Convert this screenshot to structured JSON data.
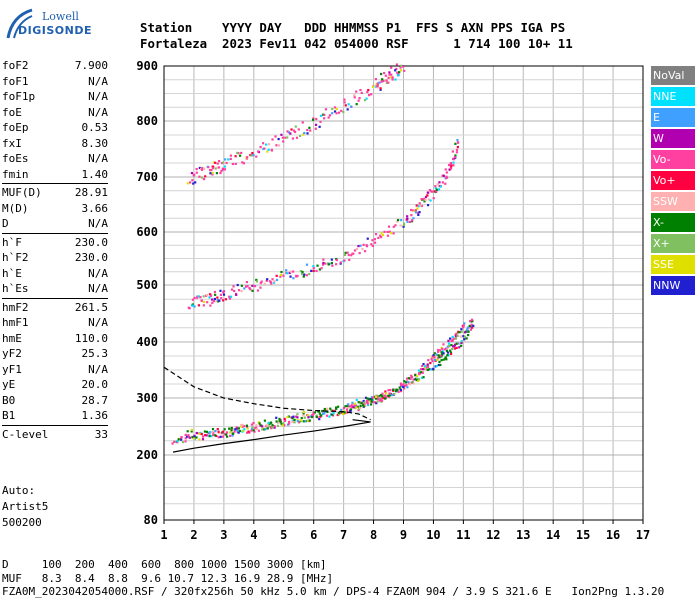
{
  "logo": {
    "line1": "Lowell",
    "line2": "DIGISONDE"
  },
  "header": {
    "line1": "Station    YYYY DAY   DDD HHMMSS P1  FFS S AXN PPS IGA PS",
    "line2": "Fortaleza  2023 Fev11 042 054000 RSF      1 714 100 10+ 11"
  },
  "params": {
    "group1": [
      {
        "label": "foF2",
        "value": "7.900"
      },
      {
        "label": "foF1",
        "value": "N/A"
      },
      {
        "label": "foF1p",
        "value": "N/A"
      },
      {
        "label": "foE",
        "value": "N/A"
      },
      {
        "label": "foEp",
        "value": "0.53"
      },
      {
        "label": "fxI",
        "value": "8.30"
      },
      {
        "label": "foEs",
        "value": "N/A"
      },
      {
        "label": "fmin",
        "value": "1.40"
      }
    ],
    "group2": [
      {
        "label": "MUF(D)",
        "value": "28.91"
      },
      {
        "label": "M(D)",
        "value": "3.66"
      },
      {
        "label": "D",
        "value": "N/A"
      }
    ],
    "group3": [
      {
        "label": "h`F",
        "value": "230.0"
      },
      {
        "label": "h`F2",
        "value": "230.0"
      },
      {
        "label": "h`E",
        "value": "N/A"
      },
      {
        "label": "h`Es",
        "value": "N/A"
      }
    ],
    "group4": [
      {
        "label": "hmF2",
        "value": "261.5"
      },
      {
        "label": "hmF1",
        "value": "N/A"
      },
      {
        "label": "hmE",
        "value": "110.0"
      },
      {
        "label": "yF2",
        "value": "25.3"
      },
      {
        "label": "yF1",
        "value": "N/A"
      },
      {
        "label": "yE",
        "value": "20.0"
      },
      {
        "label": "B0",
        "value": "28.7"
      },
      {
        "label": "B1",
        "value": "1.36"
      }
    ],
    "group5": [
      {
        "label": "C-level",
        "value": "33"
      }
    ]
  },
  "misc": {
    "auto": "Auto:",
    "artist": "Artist5",
    "version": "500200"
  },
  "footer": {
    "line1": "D     100  200  400  600  800 1000 1500 3000 [km]",
    "line2": "MUF   8.3  8.4  8.8  9.6 10.7 12.3 16.9 28.9 [MHz]",
    "line3": "FZA0M_2023042054000.RSF / 320fx256h 50 kHz 5.0 km / DPS-4 FZA0M 904 / 3.9 S 321.6 E   Ion2Png 1.3.20"
  },
  "legend": [
    {
      "label": "NoVal",
      "color": "#808080"
    },
    {
      "label": "NNE",
      "color": "#00e0ff"
    },
    {
      "label": "E",
      "color": "#40a0ff"
    },
    {
      "label": "W",
      "color": "#b000b0"
    },
    {
      "label": "Vo-",
      "color": "#ff40a0"
    },
    {
      "label": "Vo+",
      "color": "#ff0040"
    },
    {
      "label": "SSW",
      "color": "#ffb0b0"
    },
    {
      "label": "X-",
      "color": "#008000"
    },
    {
      "label": "X+",
      "color": "#80c060"
    },
    {
      "label": "SSE",
      "color": "#e0e000"
    },
    {
      "label": "NNW",
      "color": "#2020d0"
    }
  ],
  "chart_data": {
    "type": "scatter",
    "title": "",
    "xlabel": "",
    "ylabel": "",
    "xlim": [
      1,
      17
    ],
    "ylim": [
      80,
      900
    ],
    "x_ticks": [
      "1",
      "2",
      "3",
      "4",
      "5",
      "6",
      "7",
      "8",
      "9",
      "10",
      "11",
      "12",
      "13",
      "14",
      "15",
      "16",
      "17"
    ],
    "y_ticks": [
      "80",
      "200",
      "300",
      "400",
      "500",
      "600",
      "700",
      "800",
      "900"
    ],
    "y_tick_values": [
      80,
      200,
      300,
      400,
      500,
      600,
      700,
      800,
      900
    ],
    "grid": true,
    "traces": [
      {
        "name": "O-trace first hop",
        "color": "#ff40a0",
        "x": [
          1.3,
          2,
          3,
          4,
          5,
          6,
          7,
          7.5,
          8,
          8.5,
          9,
          9.5,
          10,
          10.5,
          11
        ],
        "y": [
          228,
          234,
          240,
          250,
          260,
          270,
          280,
          288,
          298,
          310,
          325,
          345,
          375,
          400,
          430
        ]
      },
      {
        "name": "X-trace first hop",
        "color": "#008000",
        "x": [
          1.8,
          3,
          4,
          5,
          6,
          7,
          8,
          9,
          10,
          10.5,
          11,
          11.3
        ],
        "y": [
          238,
          242,
          252,
          262,
          272,
          283,
          300,
          325,
          360,
          385,
          410,
          440
        ]
      },
      {
        "name": "second hop",
        "color": "#ff40a0",
        "x": [
          1.8,
          2.5,
          3,
          4,
          5,
          6,
          7,
          8,
          9,
          9.5,
          10,
          10.5,
          10.8
        ],
        "y": [
          470,
          476,
          485,
          500,
          518,
          535,
          555,
          585,
          620,
          645,
          675,
          715,
          760
        ]
      },
      {
        "name": "third hop",
        "color": "#ff40a0",
        "x": [
          1.8,
          2.5,
          3,
          4,
          5,
          6,
          7,
          8,
          8.5,
          9
        ],
        "y": [
          700,
          712,
          725,
          745,
          770,
          800,
          830,
          865,
          885,
          900
        ]
      }
    ],
    "profile_solid": {
      "x": [
        1.3,
        2,
        3,
        4,
        5,
        6,
        7,
        7.9,
        7.3,
        7.9
      ],
      "y": [
        205,
        212,
        220,
        227,
        235,
        242,
        250,
        258,
        262,
        258
      ]
    },
    "profile_dashed": {
      "x": [
        1,
        2,
        3,
        4,
        5,
        6,
        7,
        7.5,
        7.9
      ],
      "y": [
        355,
        320,
        300,
        290,
        282,
        278,
        276,
        272,
        262
      ]
    }
  }
}
